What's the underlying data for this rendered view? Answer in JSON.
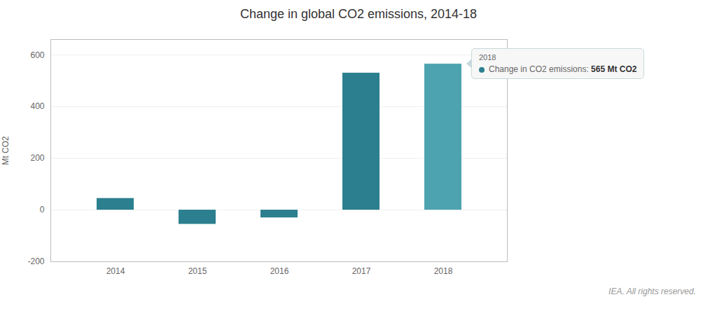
{
  "chart_data": {
    "type": "bar",
    "title": "Change in global CO2 emissions, 2014-18",
    "ylabel": "Mt CO2",
    "categories": [
      "2014",
      "2015",
      "2016",
      "2017",
      "2018"
    ],
    "values": [
      45,
      -55,
      -30,
      530,
      565
    ],
    "colors": [
      "#2b7f8e",
      "#2b7f8e",
      "#2b7f8e",
      "#2b7f8e",
      "#4da3b0"
    ],
    "ylim": [
      -200,
      660
    ],
    "yticks": [
      -200,
      0,
      200,
      400,
      600
    ],
    "grid": true,
    "annotations": [
      {
        "x": "2018",
        "title": "2018",
        "label": "Change in CO2 emissions:",
        "value_text": "565 Mt CO2",
        "color": "#2b7f8e"
      }
    ],
    "caption": "IEA. All rights reserved."
  }
}
